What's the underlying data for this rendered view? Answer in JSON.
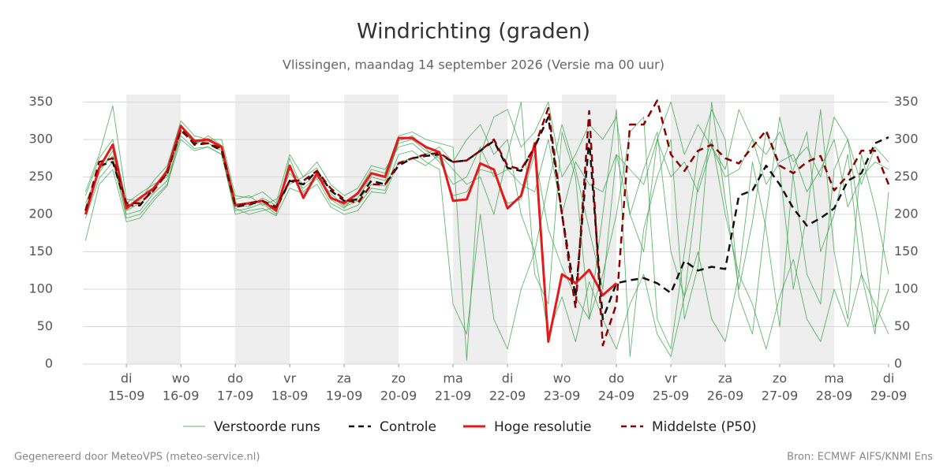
{
  "chart_data": {
    "type": "line",
    "title": "Windrichting (graden)",
    "subtitle": "Vlissingen, maandag 14 september 2026 (Versie ma 00 uur)",
    "footer_left": "Gegenereerd door MeteoVPS (meteo-service.nl)",
    "footer_right": "Bron: ECMWF AIFS/KNMI Ens",
    "xlim": [
      0.2,
      15
    ],
    "ylim": [
      0,
      360
    ],
    "yticks": [
      0,
      50,
      100,
      150,
      200,
      250,
      300,
      350
    ],
    "xticks": [
      {
        "value": 1,
        "label": "15-09"
      },
      {
        "value": 2,
        "label": "16-09"
      },
      {
        "value": 3,
        "label": "17-09"
      },
      {
        "value": 4,
        "label": "18-09"
      },
      {
        "value": 5,
        "label": "19-09"
      },
      {
        "value": 6,
        "label": "20-09"
      },
      {
        "value": 7,
        "label": "21-09"
      },
      {
        "value": 8,
        "label": "22-09"
      },
      {
        "value": 9,
        "label": "23-09"
      },
      {
        "value": 10,
        "label": "24-09"
      },
      {
        "value": 11,
        "label": "25-09"
      },
      {
        "value": 12,
        "label": "26-09"
      },
      {
        "value": 13,
        "label": "27-09"
      },
      {
        "value": 14,
        "label": "28-09"
      },
      {
        "value": 15,
        "label": "29-09"
      }
    ],
    "xtick_weekdays": [
      "di",
      "wo",
      "do",
      "vr",
      "za",
      "zo",
      "ma",
      "di",
      "wo",
      "do",
      "vr",
      "za",
      "zo",
      "ma",
      "di"
    ],
    "grid": true,
    "x": [
      0.25,
      0.5,
      0.75,
      1,
      1.25,
      1.5,
      1.75,
      2,
      2.25,
      2.5,
      2.75,
      3,
      3.25,
      3.5,
      3.75,
      4,
      4.25,
      4.5,
      4.75,
      5,
      5.25,
      5.5,
      5.75,
      6,
      6.25,
      6.5,
      6.75,
      7,
      7.25,
      7.5,
      7.75,
      8,
      8.25,
      8.5,
      8.75,
      9,
      9.25,
      9.5,
      9.75,
      10,
      10.25,
      10.5,
      10.75,
      11,
      11.25,
      11.5,
      11.75,
      12,
      12.25,
      12.5,
      12.75,
      13,
      13.25,
      13.5,
      13.75,
      14,
      14.25,
      14.5,
      14.75,
      15
    ],
    "series": [
      {
        "name": "Verstoorde runs",
        "color": "#2e9e3e",
        "style": "thin",
        "values": [
          210,
          255,
          285,
          205,
          215,
          230,
          262,
          310,
          300,
          295,
          285,
          215,
          210,
          222,
          212,
          255,
          235,
          250,
          228,
          212,
          222,
          250,
          245,
          295,
          300,
          285,
          275,
          225,
          230,
          260,
          255,
          215,
          220,
          280,
          180,
          130,
          90,
          60,
          120,
          200,
          310,
          330,
          60,
          20,
          150,
          280,
          340,
          300,
          90,
          40,
          200,
          330,
          250,
          120,
          80,
          260,
          300,
          180,
          50,
          100
        ]
      },
      {
        "name": "Verstoorde runs",
        "color": "#2e9e3e",
        "style": "thin",
        "values": [
          225,
          275,
          300,
          215,
          228,
          240,
          250,
          320,
          292,
          305,
          292,
          220,
          225,
          212,
          220,
          240,
          250,
          262,
          220,
          208,
          230,
          260,
          255,
          305,
          310,
          300,
          295,
          290,
          5,
          280,
          330,
          340,
          290,
          310,
          350,
          250,
          280,
          320,
          300,
          330,
          200,
          150,
          300,
          350,
          280,
          320,
          290,
          260,
          340,
          300,
          280,
          310,
          270,
          290,
          250,
          330,
          300,
          240,
          290,
          270
        ]
      },
      {
        "name": "Verstoorde runs",
        "color": "#2e9e3e",
        "style": "thin",
        "values": [
          195,
          248,
          270,
          200,
          205,
          228,
          245,
          305,
          288,
          290,
          280,
          205,
          208,
          215,
          200,
          275,
          230,
          248,
          215,
          205,
          212,
          235,
          232,
          280,
          285,
          270,
          260,
          80,
          40,
          200,
          60,
          20,
          100,
          150,
          40,
          90,
          30,
          110,
          60,
          20,
          80,
          120,
          40,
          10,
          90,
          150,
          60,
          30,
          120,
          80,
          20,
          90,
          140,
          60,
          30,
          100,
          50,
          120,
          80,
          40
        ]
      },
      {
        "name": "Verstoorde runs",
        "color": "#2e9e3e",
        "style": "thin",
        "values": [
          230,
          280,
          345,
          220,
          218,
          245,
          265,
          325,
          305,
          300,
          300,
          225,
          222,
          230,
          215,
          280,
          250,
          270,
          240,
          225,
          235,
          265,
          260,
          290,
          295,
          280,
          290,
          270,
          300,
          320,
          280,
          300,
          200,
          150,
          240,
          320,
          260,
          180,
          100,
          280,
          200,
          260,
          310,
          150,
          90,
          240,
          300,
          200,
          120,
          270,
          180,
          50,
          260,
          310,
          150,
          200,
          280,
          120,
          40,
          230
        ]
      },
      {
        "name": "Verstoorde runs",
        "color": "#2e9e3e",
        "style": "thin",
        "values": [
          215,
          260,
          278,
          195,
          200,
          222,
          240,
          300,
          285,
          290,
          280,
          200,
          205,
          208,
          198,
          235,
          228,
          240,
          210,
          200,
          205,
          230,
          228,
          270,
          275,
          265,
          280,
          260,
          240,
          250,
          200,
          280,
          350,
          120,
          80,
          310,
          250,
          60,
          200,
          340,
          10,
          180,
          250,
          300,
          60,
          130,
          350,
          220,
          100,
          190,
          310,
          260,
          100,
          200,
          340,
          150,
          60,
          280,
          210,
          120
        ]
      },
      {
        "name": "Verstoorde runs",
        "color": "#2e9e3e",
        "style": "thin",
        "values": [
          165,
          240,
          260,
          190,
          195,
          218,
          238,
          312,
          296,
          298,
          290,
          208,
          200,
          205,
          210,
          260,
          240,
          252,
          225,
          210,
          218,
          240,
          238,
          298,
          305,
          288,
          270,
          240,
          250,
          290,
          250,
          260,
          240,
          230,
          300,
          200,
          270,
          240,
          230,
          280,
          260,
          240,
          300,
          250,
          270,
          230,
          290,
          250,
          260,
          300,
          240,
          270,
          280,
          230,
          260,
          300,
          210,
          250,
          270,
          260
        ]
      },
      {
        "name": "Controle",
        "color": "#111111",
        "style": "dash",
        "values": [
          205,
          265,
          270,
          212,
          212,
          235,
          255,
          315,
          293,
          295,
          285,
          210,
          213,
          218,
          207,
          245,
          240,
          258,
          232,
          218,
          220,
          245,
          240,
          265,
          275,
          278,
          280,
          270,
          272,
          285,
          298,
          262,
          258,
          290,
          330,
          200,
          90,
          300,
          60,
          108,
          112,
          115,
          108,
          95,
          138,
          125,
          130,
          127,
          225,
          232,
          265,
          240,
          208,
          185,
          195,
          208,
          245,
          255,
          295,
          303
        ]
      },
      {
        "name": "Hoge resolutie",
        "color": "#e31a1c",
        "style": "bold",
        "values": [
          200,
          262,
          293,
          208,
          222,
          235,
          258,
          318,
          298,
          300,
          290,
          212,
          215,
          218,
          205,
          265,
          222,
          255,
          222,
          215,
          228,
          255,
          250,
          302,
          302,
          290,
          283,
          218,
          220,
          268,
          260,
          208,
          225,
          295,
          30,
          120,
          108,
          126,
          92,
          108,
          null,
          null,
          null,
          null,
          null,
          null,
          null,
          null,
          null,
          null,
          null,
          null,
          null,
          null,
          null,
          null,
          null,
          null,
          null,
          null
        ]
      },
      {
        "name": "Middelste (P50)",
        "color": "#8b0000",
        "style": "dash",
        "values": [
          205,
          270,
          275,
          215,
          215,
          232,
          255,
          312,
          295,
          295,
          288,
          212,
          215,
          218,
          210,
          245,
          245,
          258,
          235,
          220,
          215,
          240,
          240,
          268,
          275,
          280,
          282,
          270,
          272,
          285,
          300,
          265,
          260,
          290,
          342,
          200,
          75,
          338,
          25,
          80,
          320,
          320,
          352,
          280,
          258,
          285,
          293,
          275,
          268,
          290,
          312,
          265,
          255,
          270,
          278,
          232,
          252,
          285,
          285,
          240
        ]
      }
    ]
  }
}
